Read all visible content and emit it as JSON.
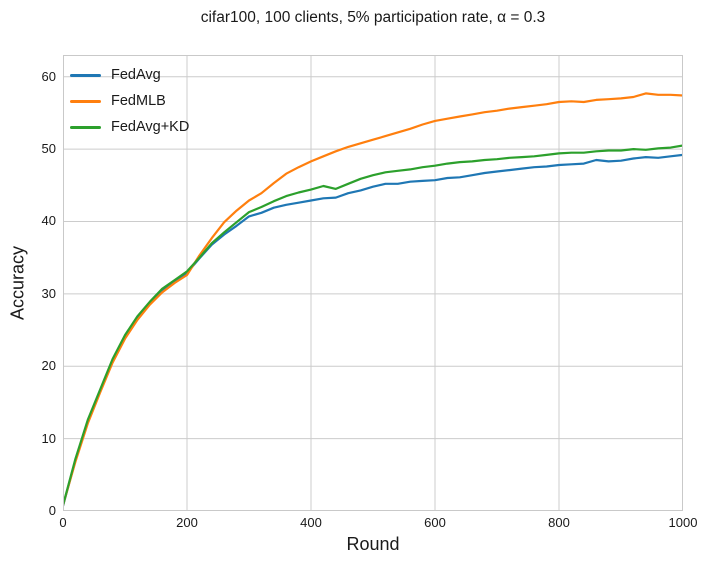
{
  "chart_data": {
    "type": "line",
    "title": "cifar100, 100 clients, 5% participation rate, α = 0.3",
    "xlabel": "Round",
    "ylabel": "Accuracy",
    "xlim": [
      0,
      1000
    ],
    "ylim": [
      0,
      63
    ],
    "xticks": [
      0,
      200,
      400,
      600,
      800,
      1000
    ],
    "yticks": [
      0,
      10,
      20,
      30,
      40,
      50,
      60
    ],
    "grid": true,
    "legend_position": "upper-left",
    "colors": {
      "grid": "#cccccc",
      "spine": "#c9c9c9",
      "text": "#1a1a1a",
      "background": "#ffffff"
    },
    "x": [
      0,
      20,
      40,
      60,
      80,
      100,
      120,
      140,
      160,
      180,
      200,
      220,
      240,
      260,
      280,
      300,
      320,
      340,
      360,
      380,
      400,
      420,
      440,
      460,
      480,
      500,
      520,
      540,
      560,
      580,
      600,
      620,
      640,
      660,
      680,
      700,
      720,
      740,
      760,
      780,
      800,
      820,
      840,
      860,
      880,
      900,
      920,
      940,
      960,
      980,
      1000
    ],
    "series": [
      {
        "name": "FedAvg",
        "color": "#1f77b4",
        "values": [
          0.7,
          7.0,
          12.4,
          16.6,
          20.7,
          24.1,
          26.7,
          28.7,
          30.5,
          31.7,
          32.9,
          34.9,
          36.8,
          38.2,
          39.4,
          40.7,
          41.2,
          41.9,
          42.3,
          42.6,
          42.9,
          43.2,
          43.3,
          43.9,
          44.3,
          44.8,
          45.2,
          45.2,
          45.5,
          45.6,
          45.7,
          46.0,
          46.1,
          46.4,
          46.7,
          46.9,
          47.1,
          47.3,
          47.5,
          47.6,
          47.8,
          47.9,
          48.0,
          48.5,
          48.3,
          48.4,
          48.7,
          48.9,
          48.8,
          49.0,
          49.2
        ]
      },
      {
        "name": "FedMLB",
        "color": "#ff7f0e",
        "values": [
          0.8,
          6.8,
          12.1,
          16.4,
          20.5,
          23.8,
          26.4,
          28.5,
          30.2,
          31.5,
          32.6,
          35.3,
          37.7,
          39.9,
          41.5,
          42.9,
          43.9,
          45.3,
          46.6,
          47.5,
          48.3,
          49.0,
          49.7,
          50.3,
          50.8,
          51.3,
          51.8,
          52.3,
          52.8,
          53.4,
          53.9,
          54.2,
          54.5,
          54.8,
          55.1,
          55.3,
          55.6,
          55.8,
          56.0,
          56.2,
          56.5,
          56.6,
          56.5,
          56.8,
          56.9,
          57.0,
          57.2,
          57.7,
          57.5,
          57.5,
          57.4
        ]
      },
      {
        "name": "FedAvg+KD",
        "color": "#2ca02c",
        "values": [
          0.8,
          7.2,
          12.6,
          16.8,
          21.0,
          24.3,
          26.9,
          28.9,
          30.7,
          31.9,
          33.1,
          35.0,
          37.0,
          38.5,
          39.9,
          41.3,
          42.0,
          42.8,
          43.5,
          44.0,
          44.4,
          44.9,
          44.5,
          45.2,
          45.9,
          46.4,
          46.8,
          47.0,
          47.2,
          47.5,
          47.7,
          48.0,
          48.2,
          48.3,
          48.5,
          48.6,
          48.8,
          48.9,
          49.0,
          49.2,
          49.4,
          49.5,
          49.5,
          49.7,
          49.8,
          49.8,
          50.0,
          49.9,
          50.1,
          50.2,
          50.5
        ]
      }
    ]
  }
}
